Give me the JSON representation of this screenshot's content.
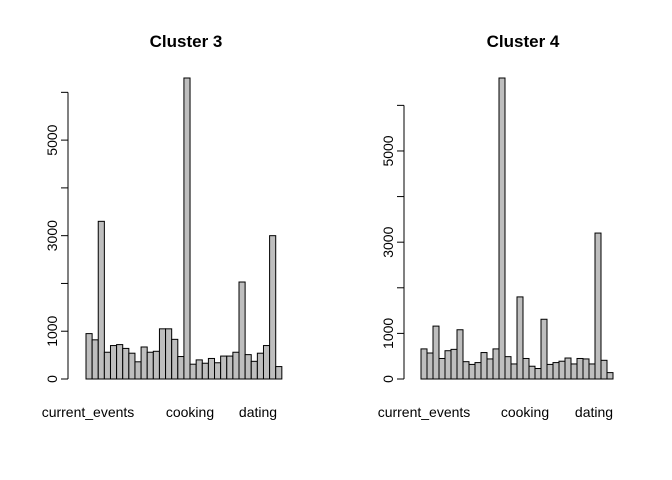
{
  "chart_data": [
    {
      "type": "bar",
      "title": "Cluster 3",
      "ylim": [
        0,
        6300
      ],
      "yticks": [
        0,
        1000,
        3000,
        5000
      ],
      "category_labels": [
        {
          "label": "current_events",
          "bar_index": 2
        },
        {
          "label": "cooking",
          "bar_index": 18
        },
        {
          "label": "dating",
          "bar_index": 27
        }
      ],
      "values": [
        950,
        820,
        3300,
        560,
        700,
        720,
        640,
        540,
        360,
        670,
        560,
        580,
        1050,
        1050,
        830,
        470,
        6300,
        310,
        400,
        330,
        430,
        340,
        480,
        480,
        560,
        2030,
        510,
        370,
        540,
        700,
        3000,
        260
      ]
    },
    {
      "type": "bar",
      "title": "Cluster 4",
      "ylim": [
        0,
        6600
      ],
      "yticks": [
        0,
        1000,
        3000,
        5000
      ],
      "category_labels": [
        {
          "label": "current_events",
          "bar_index": 2
        },
        {
          "label": "cooking",
          "bar_index": 18
        },
        {
          "label": "dating",
          "bar_index": 27
        }
      ],
      "values": [
        660,
        570,
        1160,
        450,
        620,
        650,
        1080,
        380,
        320,
        360,
        580,
        440,
        660,
        6600,
        490,
        330,
        1800,
        450,
        280,
        230,
        1310,
        320,
        360,
        390,
        460,
        330,
        450,
        440,
        330,
        3200,
        410,
        140
      ]
    }
  ]
}
